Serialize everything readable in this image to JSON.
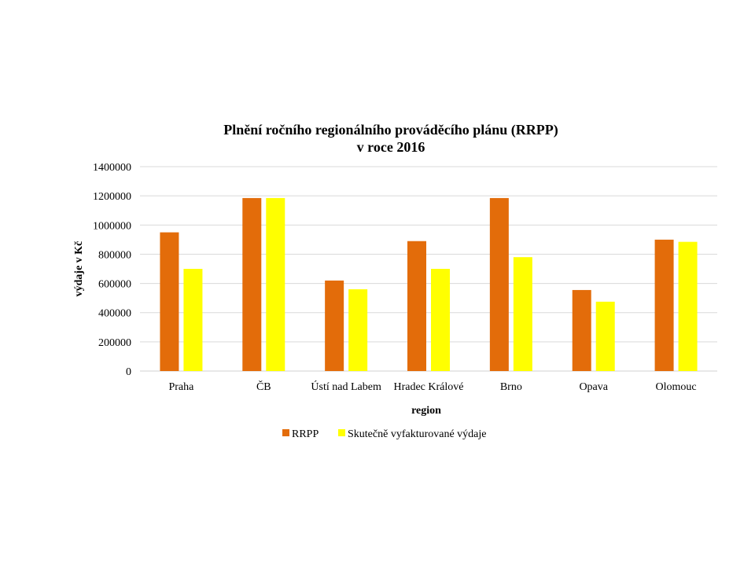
{
  "chart_data": {
    "type": "bar",
    "title_line1": "Plnění ročního regionálního prováděcího plánu (RRPP)",
    "title_line2": "v roce 2016",
    "xlabel": "region",
    "ylabel": "výdaje v Kč",
    "categories": [
      "Praha",
      "ČB",
      "Ústí nad Labem",
      "Hradec Králové",
      "Brno",
      "Opava",
      "Olomouc"
    ],
    "series": [
      {
        "name": "RRPP",
        "color": "#E36C0A",
        "values": [
          950000,
          1185000,
          620000,
          890000,
          1185000,
          555000,
          900000
        ]
      },
      {
        "name": "Skutečně vyfakturované výdaje",
        "color": "#FFFF00",
        "values": [
          700000,
          1185000,
          560000,
          700000,
          780000,
          475000,
          885000
        ]
      }
    ],
    "ylim": [
      0,
      1400000
    ],
    "yticks": [
      "0",
      "200000",
      "400000",
      "600000",
      "800000",
      "1000000",
      "1200000",
      "1400000"
    ],
    "grid": true,
    "legend_position": "bottom"
  }
}
